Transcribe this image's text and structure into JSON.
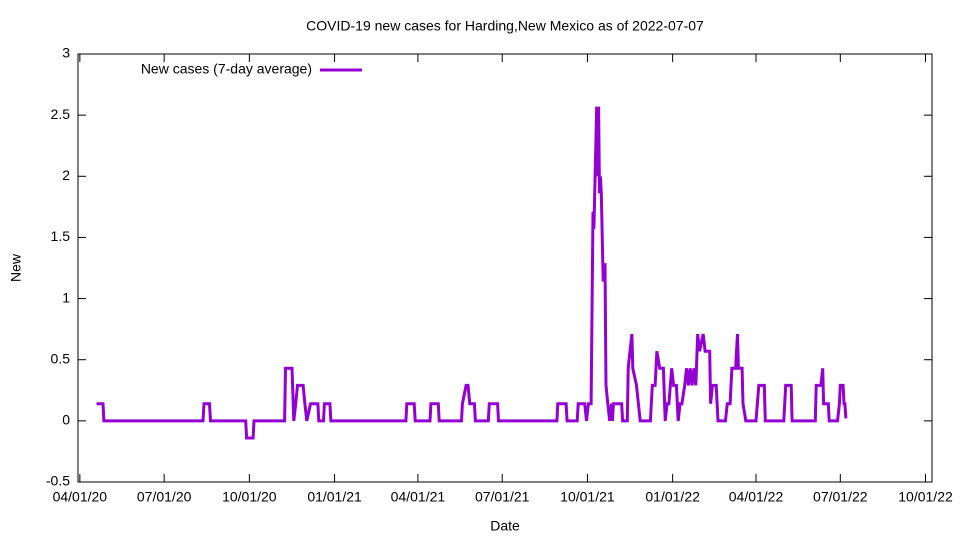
{
  "chart_data": {
    "type": "line",
    "title": "COVID-19 new cases for Harding,New Mexico as of 2022-07-07",
    "x_label": "Date",
    "y_label": "New",
    "legend": "top-left",
    "xlim": [
      "2020-03-30",
      "2022-10-08"
    ],
    "xticks": [
      {
        "value": "2020-04-01",
        "label": "04/01/20"
      },
      {
        "value": "2020-07-01",
        "label": "07/01/20"
      },
      {
        "value": "2020-10-01",
        "label": "10/01/20"
      },
      {
        "value": "2021-01-01",
        "label": "01/01/21"
      },
      {
        "value": "2021-04-01",
        "label": "04/01/21"
      },
      {
        "value": "2021-07-01",
        "label": "07/01/21"
      },
      {
        "value": "2021-10-01",
        "label": "10/01/21"
      },
      {
        "value": "2022-01-01",
        "label": "01/01/22"
      },
      {
        "value": "2022-04-01",
        "label": "04/01/22"
      },
      {
        "value": "2022-07-01",
        "label": "07/01/22"
      },
      {
        "value": "2022-10-01",
        "label": "10/01/22"
      }
    ],
    "ylim": [
      -0.5,
      3
    ],
    "yticks": [
      -0.5,
      0,
      0.5,
      1,
      1.5,
      2,
      2.5,
      3
    ],
    "x": [
      "2020-04-19",
      "2020-04-26",
      "2020-04-27",
      "2020-08-12",
      "2020-08-13",
      "2020-08-19",
      "2020-08-20",
      "2020-09-27",
      "2020-09-28",
      "2020-10-05",
      "2020-10-06",
      "2020-11-08",
      "2020-11-09",
      "2020-11-16",
      "2020-11-18",
      "2020-11-20",
      "2020-11-22",
      "2020-11-28",
      "2020-11-30",
      "2020-12-02",
      "2020-12-06",
      "2020-12-14",
      "2020-12-15",
      "2020-12-20",
      "2020-12-21",
      "2020-12-27",
      "2020-12-28",
      "2021-03-19",
      "2021-03-20",
      "2021-03-28",
      "2021-03-29",
      "2021-04-14",
      "2021-04-15",
      "2021-04-23",
      "2021-04-24",
      "2021-05-18",
      "2021-05-19",
      "2021-05-23",
      "2021-05-25",
      "2021-05-27",
      "2021-06-01",
      "2021-06-02",
      "2021-06-16",
      "2021-06-17",
      "2021-06-26",
      "2021-06-27",
      "2021-08-29",
      "2021-08-30",
      "2021-09-08",
      "2021-09-09",
      "2021-09-20",
      "2021-09-21",
      "2021-09-28",
      "2021-09-30",
      "2021-10-02",
      "2021-10-05",
      "2021-10-07",
      "2021-10-08",
      "2021-10-11",
      "2021-10-12",
      "2021-10-13",
      "2021-10-14",
      "2021-10-15",
      "2021-10-16",
      "2021-10-18",
      "2021-10-20",
      "2021-10-21",
      "2021-10-23",
      "2021-10-25",
      "2021-10-27",
      "2021-10-28",
      "2021-10-29",
      "2021-11-07",
      "2021-11-08",
      "2021-11-13",
      "2021-11-14",
      "2021-11-16",
      "2021-11-18",
      "2021-11-19",
      "2021-11-23",
      "2021-11-25",
      "2021-11-27",
      "2021-12-08",
      "2021-12-10",
      "2021-12-13",
      "2021-12-15",
      "2021-12-18",
      "2021-12-22",
      "2021-12-24",
      "2021-12-26",
      "2021-12-28",
      "2021-12-31",
      "2022-01-02",
      "2022-01-05",
      "2022-01-07",
      "2022-01-09",
      "2022-01-11",
      "2022-01-14",
      "2022-01-16",
      "2022-01-18",
      "2022-01-20",
      "2022-01-22",
      "2022-01-24",
      "2022-01-26",
      "2022-01-28",
      "2022-01-30",
      "2022-02-03",
      "2022-02-05",
      "2022-02-10",
      "2022-02-11",
      "2022-02-13",
      "2022-02-17",
      "2022-02-19",
      "2022-02-27",
      "2022-03-01",
      "2022-03-04",
      "2022-03-06",
      "2022-03-10",
      "2022-03-12",
      "2022-03-13",
      "2022-03-17",
      "2022-03-18",
      "2022-03-21",
      "2022-04-01",
      "2022-04-04",
      "2022-04-10",
      "2022-04-11",
      "2022-05-01",
      "2022-05-03",
      "2022-05-09",
      "2022-05-10",
      "2022-06-04",
      "2022-06-05",
      "2022-06-10",
      "2022-06-12",
      "2022-06-13",
      "2022-06-18",
      "2022-06-19",
      "2022-06-28",
      "2022-06-30",
      "2022-07-01",
      "2022-07-04",
      "2022-07-05",
      "2022-07-06",
      "2022-07-07"
    ],
    "series": [
      {
        "name": "New cases (7-day average)",
        "color": "#9400d3",
        "values": [
          0.14,
          0.14,
          0,
          0,
          0.14,
          0.14,
          0,
          0,
          -0.14,
          -0.14,
          0,
          0,
          0.43,
          0.43,
          0,
          0.14,
          0.29,
          0.29,
          0.14,
          0,
          0.14,
          0.14,
          0,
          0,
          0.14,
          0.14,
          0,
          0,
          0.14,
          0.14,
          0,
          0,
          0.14,
          0.14,
          0,
          0,
          0.14,
          0.29,
          0.29,
          0.14,
          0.14,
          0,
          0,
          0.14,
          0.14,
          0,
          0,
          0.14,
          0.14,
          0,
          0,
          0.14,
          0.14,
          0,
          0.14,
          0.14,
          1.71,
          1.57,
          2.57,
          2.0,
          2.57,
          1.86,
          2.0,
          1.86,
          1.14,
          1.29,
          0.29,
          0.14,
          0,
          0.14,
          0,
          0.14,
          0.14,
          0,
          0,
          0.43,
          0.57,
          0.71,
          0.43,
          0.29,
          0.14,
          0,
          0,
          0.29,
          0.29,
          0.57,
          0.43,
          0.43,
          0,
          0.14,
          0.14,
          0.43,
          0.29,
          0.29,
          0,
          0.14,
          0.14,
          0.29,
          0.43,
          0.29,
          0.43,
          0.29,
          0.43,
          0.29,
          0.71,
          0.57,
          0.71,
          0.57,
          0.57,
          0.14,
          0.29,
          0.29,
          0,
          0,
          0.14,
          0.14,
          0.43,
          0.43,
          0.71,
          0.43,
          0.43,
          0.14,
          0,
          0,
          0.29,
          0.29,
          0,
          0,
          0.29,
          0.29,
          0,
          0,
          0.29,
          0.29,
          0.43,
          0.14,
          0.14,
          0,
          0,
          0.14,
          0.29,
          0.29,
          0.14,
          0.14,
          0.02
        ]
      }
    ]
  }
}
